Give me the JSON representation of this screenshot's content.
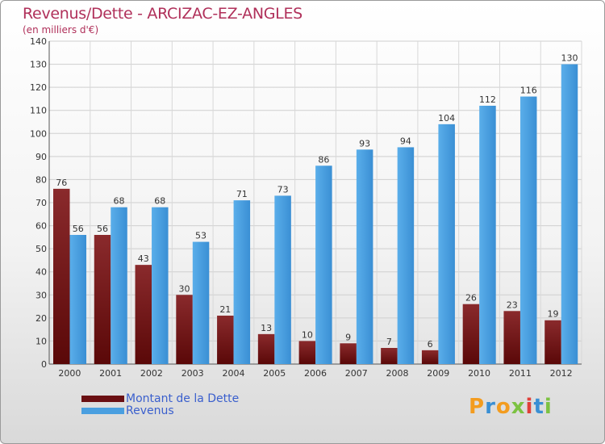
{
  "title": "Revenus/Dette - ARCIZAC-EZ-ANGLES",
  "subtitle": "(en milliers d'€)",
  "logo": "Proxiti",
  "chart_data": {
    "type": "bar",
    "categories": [
      "2000",
      "2001",
      "2002",
      "2003",
      "2004",
      "2005",
      "2006",
      "2007",
      "2008",
      "2009",
      "2010",
      "2011",
      "2012"
    ],
    "series": [
      {
        "name": "Montant de la Dette",
        "color": "#7a1a1e",
        "values": [
          76,
          56,
          43,
          30,
          21,
          13,
          10,
          9,
          7,
          6,
          26,
          23,
          19
        ]
      },
      {
        "name": "Revenus",
        "color": "#4a9fe0",
        "values": [
          56,
          68,
          68,
          53,
          71,
          73,
          86,
          93,
          94,
          104,
          112,
          116,
          130
        ]
      }
    ],
    "ylim": [
      0,
      140
    ],
    "yticks": [
      0,
      10,
      20,
      30,
      40,
      50,
      60,
      70,
      80,
      90,
      100,
      110,
      120,
      130,
      140
    ],
    "grid": true,
    "legend": "bottom-left"
  }
}
